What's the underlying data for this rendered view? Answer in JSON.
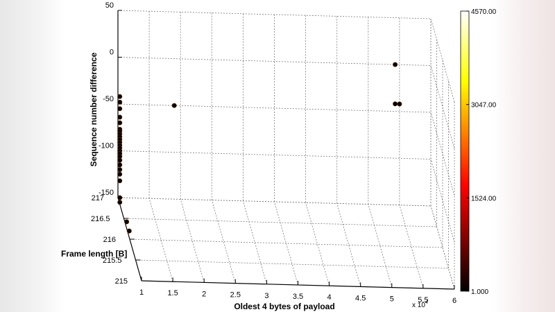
{
  "chart_data": {
    "type": "scatter",
    "title": "",
    "xlabel": "Oldest 4 bytes of payload",
    "ylabel": "Frame length [B]",
    "zlabel": "Sequence number difference",
    "x_multiplier_label": "x 10",
    "x_multiplier_exponent": "4",
    "x_ticks": [
      "1",
      "1.5",
      "2",
      "2.5",
      "3",
      "3.5",
      "4",
      "4.5",
      "5",
      "5.5",
      "6"
    ],
    "y_ticks": [
      "215",
      "215.5",
      "216",
      "216.5",
      "217"
    ],
    "z_ticks": [
      "-150",
      "-100",
      "-50",
      "0",
      "50"
    ],
    "xlim": [
      1,
      6
    ],
    "ylim": [
      215,
      217
    ],
    "zlim": [
      -150,
      50
    ],
    "grid": true,
    "colorbar": {
      "ticks": [
        "1.000",
        "1524.00",
        "3047.00",
        "4570.00"
      ],
      "min": 1,
      "max": 4570,
      "colormap": "hot"
    },
    "points": [
      {
        "x": 1.03,
        "y": 217,
        "z": -42
      },
      {
        "x": 1.03,
        "y": 217,
        "z": -48
      },
      {
        "x": 1.03,
        "y": 217,
        "z": -55
      },
      {
        "x": 1.03,
        "y": 217,
        "z": -64
      },
      {
        "x": 1.03,
        "y": 217,
        "z": -70
      },
      {
        "x": 1.03,
        "y": 217,
        "z": -77
      },
      {
        "x": 1.03,
        "y": 217,
        "z": -79
      },
      {
        "x": 1.03,
        "y": 217,
        "z": -82
      },
      {
        "x": 1.03,
        "y": 217,
        "z": -85
      },
      {
        "x": 1.03,
        "y": 217,
        "z": -88
      },
      {
        "x": 1.03,
        "y": 217,
        "z": -91
      },
      {
        "x": 1.03,
        "y": 217,
        "z": -94
      },
      {
        "x": 1.03,
        "y": 217,
        "z": -97
      },
      {
        "x": 1.03,
        "y": 217,
        "z": -100
      },
      {
        "x": 1.03,
        "y": 217,
        "z": -103
      },
      {
        "x": 1.03,
        "y": 217,
        "z": -106
      },
      {
        "x": 1.03,
        "y": 217,
        "z": -110
      },
      {
        "x": 1.03,
        "y": 217,
        "z": -115
      },
      {
        "x": 1.03,
        "y": 217,
        "z": -120
      },
      {
        "x": 1.03,
        "y": 217,
        "z": -125
      },
      {
        "x": 1.03,
        "y": 217,
        "z": -132
      },
      {
        "x": 1.03,
        "y": 217,
        "z": -150
      },
      {
        "x": 1.03,
        "y": 217,
        "z": -155
      },
      {
        "x": 1.03,
        "y": 216.42,
        "z": -150
      },
      {
        "x": 1.03,
        "y": 216.2,
        "z": -150
      },
      {
        "x": 1.9,
        "y": 217,
        "z": -50
      },
      {
        "x": 5.43,
        "y": 217,
        "z": 0
      },
      {
        "x": 5.43,
        "y": 217,
        "z": -42
      },
      {
        "x": 5.5,
        "y": 217,
        "z": -42
      }
    ]
  }
}
